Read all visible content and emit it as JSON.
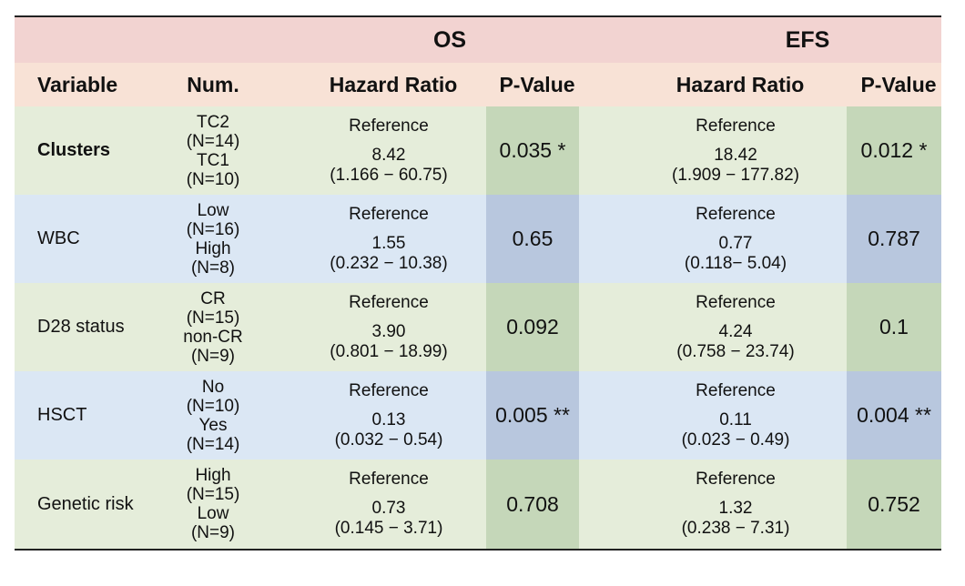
{
  "header": {
    "os_label": "OS",
    "efs_label": "EFS"
  },
  "columns": {
    "variable": "Variable",
    "num": "Num.",
    "os_hr": "Hazard Ratio",
    "os_p": "P-Value",
    "efs_hr": "Hazard Ratio",
    "efs_p": "P-Value"
  },
  "rows": [
    {
      "variable": "Clusters",
      "bold": true,
      "color": "green",
      "num": [
        "TC2",
        "(N=14)",
        "TC1",
        "(N=10)"
      ],
      "os_ref": "Reference",
      "os_hr": "8.42",
      "os_ci": "(1.166 − 60.75)",
      "os_p": "0.035 *",
      "efs_ref": "Reference",
      "efs_hr": "18.42",
      "efs_ci": "(1.909 − 177.82)",
      "efs_p": "0.012 *"
    },
    {
      "variable": "WBC",
      "bold": false,
      "color": "blue",
      "num": [
        "Low",
        "(N=16)",
        "High",
        "(N=8)"
      ],
      "os_ref": "Reference",
      "os_hr": "1.55",
      "os_ci": "(0.232 − 10.38)",
      "os_p": "0.65",
      "efs_ref": "Reference",
      "efs_hr": "0.77",
      "efs_ci": "(0.118− 5.04)",
      "efs_p": "0.787"
    },
    {
      "variable": "D28 status",
      "bold": false,
      "color": "green",
      "num": [
        "CR",
        "(N=15)",
        "non-CR",
        "(N=9)"
      ],
      "os_ref": "Reference",
      "os_hr": "3.90",
      "os_ci": "(0.801 − 18.99)",
      "os_p": "0.092",
      "efs_ref": "Reference",
      "efs_hr": "4.24",
      "efs_ci": "(0.758 − 23.74)",
      "efs_p": "0.1"
    },
    {
      "variable": "HSCT",
      "bold": false,
      "color": "blue",
      "num": [
        "No",
        "(N=10)",
        "Yes",
        "(N=14)"
      ],
      "os_ref": "Reference",
      "os_hr": "0.13",
      "os_ci": "(0.032 − 0.54)",
      "os_p": "0.005 **",
      "efs_ref": "Reference",
      "efs_hr": "0.11",
      "efs_ci": "(0.023 − 0.49)",
      "efs_p": "0.004 **"
    },
    {
      "variable": "Genetic risk",
      "bold": false,
      "color": "green",
      "num": [
        "High",
        "(N=15)",
        "Low",
        "(N=9)"
      ],
      "os_ref": "Reference",
      "os_hr": "0.73",
      "os_ci": "(0.145 − 3.71)",
      "os_p": "0.708",
      "efs_ref": "Reference",
      "efs_hr": "1.32",
      "efs_ci": "(0.238 − 7.31)",
      "efs_p": "0.752"
    }
  ]
}
